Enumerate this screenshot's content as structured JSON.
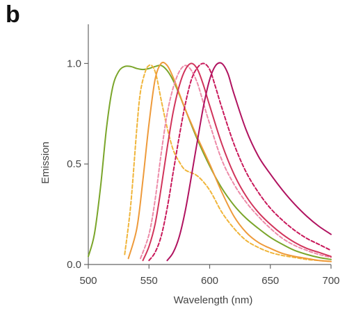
{
  "panel_label": "b",
  "chart_data": {
    "type": "line",
    "title": "",
    "xlabel": "Wavelength (nm)",
    "ylabel": "Emission",
    "xlim": [
      500,
      700
    ],
    "ylim": [
      0,
      1.15
    ],
    "xticks": [
      500,
      550,
      600,
      650,
      700
    ],
    "yticks": [
      0.0,
      0.5,
      1.0
    ],
    "ytick_labels": [
      "0.0",
      "0.5",
      "1.0"
    ],
    "grid": false,
    "legend": "none",
    "series": [
      {
        "color": "#7aa52a",
        "dashed": false,
        "x": [
          500,
          505,
          510,
          515,
          520,
          525,
          530,
          535,
          540,
          545,
          550,
          555,
          560,
          565,
          570,
          575,
          580,
          590,
          600,
          610,
          620,
          630,
          640,
          650,
          660,
          670,
          680,
          690,
          700
        ],
        "y": [
          0.04,
          0.15,
          0.38,
          0.68,
          0.88,
          0.96,
          0.985,
          0.985,
          0.975,
          0.97,
          0.975,
          0.985,
          0.99,
          0.965,
          0.915,
          0.845,
          0.77,
          0.62,
          0.49,
          0.38,
          0.295,
          0.23,
          0.18,
          0.135,
          0.1,
          0.07,
          0.05,
          0.035,
          0.025
        ]
      },
      {
        "color": "#f0b53a",
        "dashed": true,
        "x": [
          530,
          535,
          540,
          543,
          547,
          550,
          553,
          556,
          560,
          565,
          570,
          575,
          580,
          590,
          600,
          610,
          620,
          630,
          640,
          650,
          660,
          670,
          680,
          690,
          700
        ],
        "y": [
          0.05,
          0.3,
          0.68,
          0.86,
          0.96,
          0.99,
          0.985,
          0.94,
          0.82,
          0.68,
          0.57,
          0.51,
          0.47,
          0.44,
          0.37,
          0.26,
          0.18,
          0.12,
          0.085,
          0.06,
          0.045,
          0.035,
          0.025,
          0.02,
          0.015
        ]
      },
      {
        "color": "#ee9a3a",
        "dashed": false,
        "x": [
          533,
          540,
          545,
          550,
          555,
          560,
          565,
          570,
          575,
          580,
          585,
          590,
          600,
          610,
          620,
          630,
          640,
          650,
          660,
          670,
          680,
          690,
          700
        ],
        "y": [
          0.03,
          0.18,
          0.42,
          0.7,
          0.92,
          1.0,
          0.99,
          0.93,
          0.85,
          0.77,
          0.7,
          0.63,
          0.5,
          0.36,
          0.24,
          0.16,
          0.11,
          0.08,
          0.055,
          0.04,
          0.03,
          0.02,
          0.015
        ]
      },
      {
        "color": "#ed8aa8",
        "dashed": true,
        "x": [
          543,
          550,
          555,
          560,
          565,
          570,
          575,
          580,
          585,
          590,
          595,
          600,
          610,
          620,
          630,
          640,
          650,
          660,
          670,
          680,
          690,
          700
        ],
        "y": [
          0.03,
          0.15,
          0.32,
          0.55,
          0.75,
          0.88,
          0.96,
          0.99,
          0.965,
          0.9,
          0.8,
          0.7,
          0.52,
          0.4,
          0.31,
          0.24,
          0.18,
          0.13,
          0.095,
          0.07,
          0.05,
          0.035
        ]
      },
      {
        "color": "#d1345b",
        "dashed": false,
        "x": [
          545,
          550,
          555,
          560,
          565,
          570,
          575,
          580,
          585,
          590,
          595,
          600,
          610,
          620,
          630,
          640,
          650,
          660,
          670,
          680,
          690,
          700
        ],
        "y": [
          0.02,
          0.09,
          0.2,
          0.38,
          0.58,
          0.76,
          0.89,
          0.97,
          1.0,
          0.97,
          0.89,
          0.79,
          0.6,
          0.45,
          0.34,
          0.26,
          0.2,
          0.15,
          0.11,
          0.08,
          0.06,
          0.04
        ]
      },
      {
        "color": "#c8185a",
        "dashed": true,
        "x": [
          550,
          555,
          560,
          565,
          570,
          575,
          580,
          585,
          590,
          595,
          600,
          605,
          610,
          620,
          630,
          640,
          650,
          660,
          670,
          680,
          690,
          700
        ],
        "y": [
          0.02,
          0.06,
          0.14,
          0.28,
          0.46,
          0.64,
          0.8,
          0.92,
          0.98,
          1.0,
          0.97,
          0.88,
          0.78,
          0.6,
          0.46,
          0.36,
          0.28,
          0.22,
          0.17,
          0.13,
          0.1,
          0.07
        ]
      },
      {
        "color": "#b0125f",
        "dashed": false,
        "x": [
          565,
          570,
          575,
          580,
          585,
          590,
          595,
          600,
          605,
          610,
          615,
          620,
          630,
          640,
          650,
          660,
          670,
          680,
          690,
          700
        ],
        "y": [
          0.02,
          0.06,
          0.14,
          0.27,
          0.44,
          0.62,
          0.79,
          0.92,
          0.99,
          1.0,
          0.95,
          0.85,
          0.67,
          0.54,
          0.45,
          0.37,
          0.3,
          0.24,
          0.19,
          0.15
        ]
      }
    ]
  }
}
